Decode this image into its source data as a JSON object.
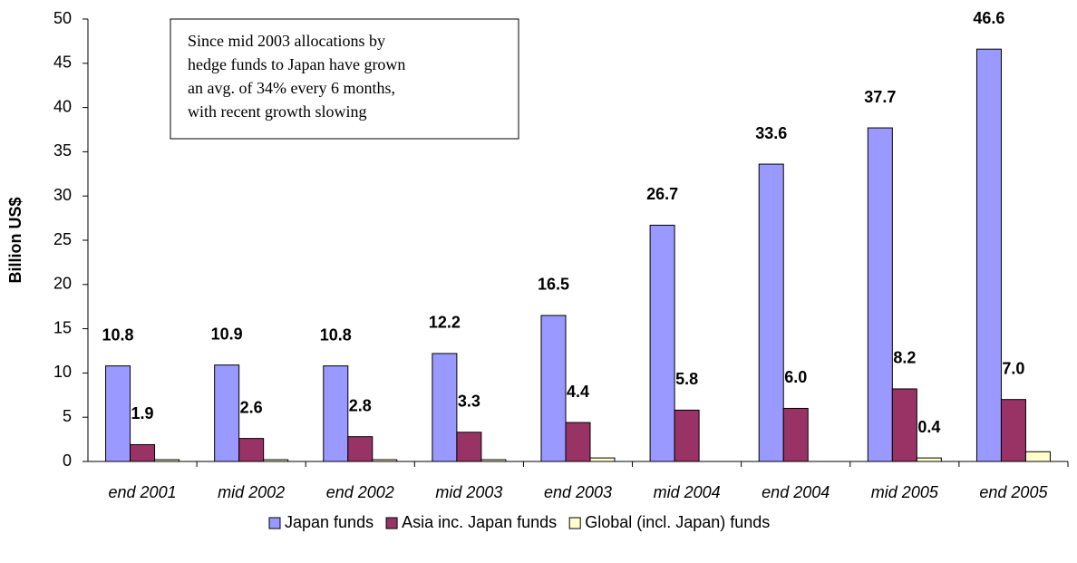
{
  "chart_data": {
    "type": "bar",
    "ylabel": "Billion US$",
    "annotation": [
      "Since mid 2003 allocations by",
      "hedge funds to Japan have grown",
      "an avg. of 34% every 6 months,",
      "with recent growth slowing"
    ],
    "categories": [
      "end 2001",
      "mid 2002",
      "end 2002",
      "mid 2003",
      "end 2003",
      "mid 2004",
      "end 2004",
      "mid 2005",
      "end 2005"
    ],
    "series": [
      {
        "name": "Japan funds",
        "color": "#9999ff",
        "values": [
          10.8,
          10.9,
          10.8,
          12.2,
          16.5,
          26.7,
          33.6,
          37.7,
          46.6
        ],
        "value_labels": [
          "10.8",
          "10.9",
          "10.8",
          "12.2",
          "16.5",
          "26.7",
          "33.6",
          "37.7",
          "46.6"
        ]
      },
      {
        "name": "Asia inc. Japan funds",
        "color": "#993366",
        "values": [
          1.9,
          2.6,
          2.8,
          3.3,
          4.4,
          5.8,
          6,
          8.2,
          7
        ],
        "value_labels": [
          "1.9",
          "2.6",
          "2.8",
          "3.3",
          "4.4",
          "5.8",
          "6.0",
          "8.2",
          "7.0"
        ]
      },
      {
        "name": "Global (incl. Japan) funds",
        "color": "#ffffcc",
        "values": [
          0.2,
          0.2,
          0.2,
          0.2,
          0.4,
          null,
          null,
          0.4,
          1.1
        ],
        "value_labels": [
          null,
          null,
          null,
          null,
          null,
          null,
          null,
          "0.4",
          null
        ]
      }
    ],
    "ylim": [
      0,
      50
    ],
    "yticks": [
      0,
      5,
      10,
      15,
      20,
      25,
      30,
      35,
      40,
      45,
      50
    ],
    "legend": "bottom"
  }
}
